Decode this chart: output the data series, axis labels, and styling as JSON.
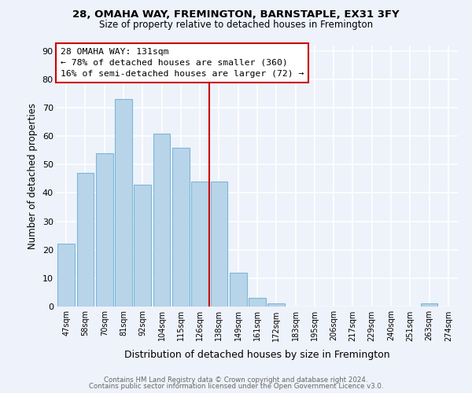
{
  "title1": "28, OMAHA WAY, FREMINGTON, BARNSTAPLE, EX31 3FY",
  "title2": "Size of property relative to detached houses in Fremington",
  "xlabel": "Distribution of detached houses by size in Fremington",
  "ylabel": "Number of detached properties",
  "bin_labels": [
    "47sqm",
    "58sqm",
    "70sqm",
    "81sqm",
    "92sqm",
    "104sqm",
    "115sqm",
    "126sqm",
    "138sqm",
    "149sqm",
    "161sqm",
    "172sqm",
    "183sqm",
    "195sqm",
    "206sqm",
    "217sqm",
    "229sqm",
    "240sqm",
    "251sqm",
    "263sqm",
    "274sqm"
  ],
  "bar_heights": [
    22,
    47,
    54,
    73,
    43,
    61,
    56,
    44,
    44,
    12,
    3,
    1,
    0,
    0,
    0,
    0,
    0,
    0,
    0,
    1,
    0
  ],
  "bar_color": "#b8d4e8",
  "bar_edge_color": "#7ab8d8",
  "property_line_label": "28 OMAHA WAY: 131sqm",
  "annotation_line1": "← 78% of detached houses are smaller (360)",
  "annotation_line2": "16% of semi-detached houses are larger (72) →",
  "box_color": "#ffffff",
  "box_edge_color": "#cc0000",
  "vline_color": "#cc0000",
  "vline_x_index": 7.5,
  "ylim": [
    0,
    92
  ],
  "yticks": [
    0,
    10,
    20,
    30,
    40,
    50,
    60,
    70,
    80,
    90
  ],
  "footer1": "Contains HM Land Registry data © Crown copyright and database right 2024.",
  "footer2": "Contains public sector information licensed under the Open Government Licence v3.0.",
  "bg_color": "#eef2fa",
  "grid_color": "#ffffff"
}
